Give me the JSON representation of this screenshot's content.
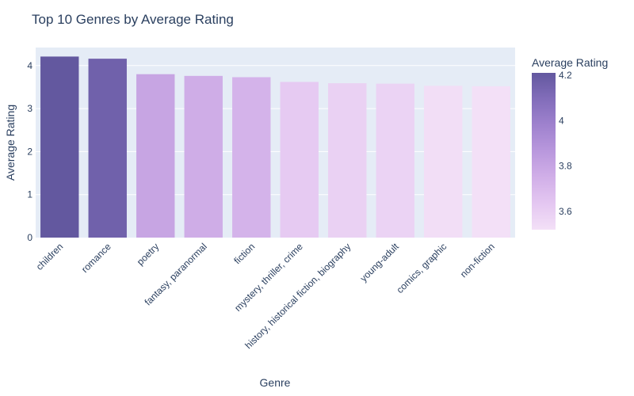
{
  "chart_data": {
    "type": "bar",
    "title": "Top 10 Genres by Average Rating",
    "xlabel": "Genre",
    "ylabel": "Average Rating",
    "categories": [
      "children",
      "romance",
      "poetry",
      "fantasy, paranormal",
      "fiction",
      "mystery, thriller, crime",
      "history, historical fiction, biography",
      "young-adult",
      "comics, graphic",
      "non-fiction"
    ],
    "values": [
      4.21,
      4.16,
      3.8,
      3.76,
      3.73,
      3.62,
      3.59,
      3.58,
      3.53,
      3.52
    ],
    "ylim": [
      0,
      4.42
    ],
    "yticks": [
      0,
      1,
      2,
      3,
      4
    ],
    "grid": true,
    "plot_background": "#e5ecf6",
    "colorbar": {
      "title": "Average Rating",
      "min": 3.52,
      "max": 4.21,
      "ticks": [
        3.6,
        3.8,
        4,
        4.2
      ],
      "tick_labels": [
        "3.6",
        "3.8",
        "4",
        "4.2"
      ],
      "colorscale": [
        "#f3e0f7",
        "#e4c7f1",
        "#d1afe8",
        "#b998dd",
        "#9f82ce",
        "#826dba",
        "#63589f"
      ]
    }
  }
}
